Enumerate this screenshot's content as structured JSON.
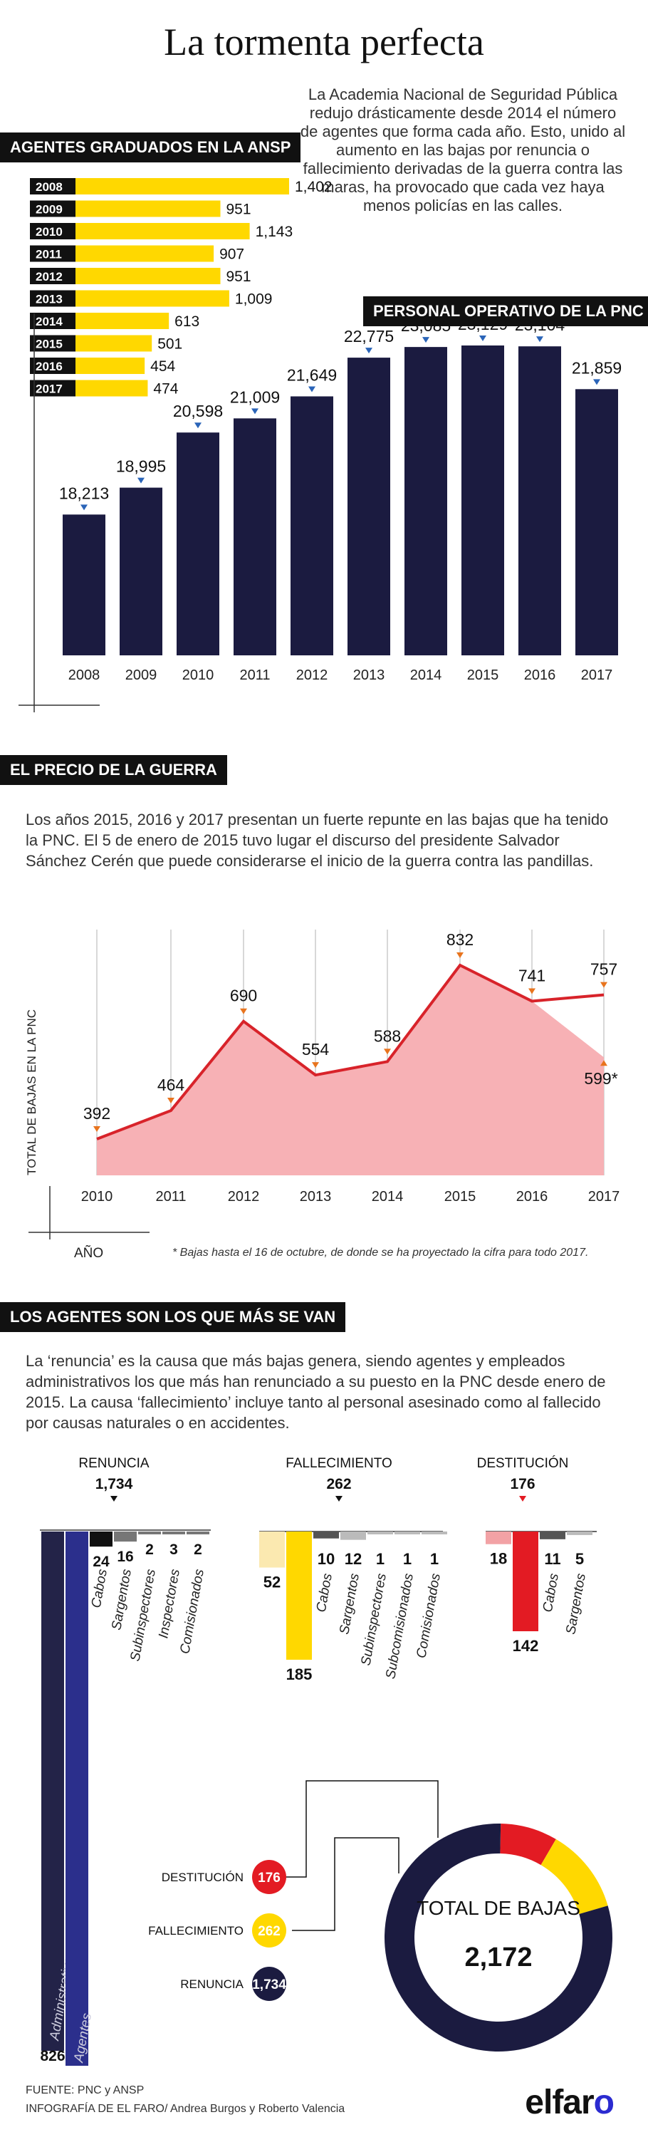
{
  "header": {
    "title": "La tormenta perfecta",
    "intro": "La Academia Nacional de Seguridad Pública redujo drásticamente desde 2014 el número de agentes que forma cada año. Esto, unido al aumento en las bajas por renuncia o fallecimiento derivadas de la guerra contra las maras, ha provocado que cada vez haya menos policías en las calles."
  },
  "section1": {
    "badge": "AGENTES GRADUADOS EN LA ANSP"
  },
  "section2": {
    "badge": "PERSONAL OPERATIVO DE LA PNC"
  },
  "section3": {
    "badge": "EL PRECIO DE LA GUERRA",
    "text": "Los años 2015, 2016 y 2017 presentan un fuerte repunte en las bajas que ha tenido la PNC. El 5 de enero de 2015 tuvo lugar el discurso del presidente Salvador Sánchez Cerén que puede considerarse el inicio de la guerra contra las pandillas."
  },
  "section4": {
    "badge": "LOS AGENTES SON LOS QUE MÁS SE VAN",
    "text": "La ‘renuncia’ es la causa que más bajas genera, siendo agentes y empleados administrativos los que más han renunciado a su puesto en la PNC desde enero de 2015. La causa ‘fallecimiento’ incluye tanto al personal asesinado como al fallecido por causas naturales o en accidentes."
  },
  "footer": {
    "source": "FUENTE: PNC y ANSP",
    "credit": "INFOGRAFÍA DE EL FARO/ Andrea Burgos y Roberto Valencia",
    "logo_a": "elfar",
    "logo_b": "o"
  },
  "colors": {
    "navy": "#1b1b40",
    "yellow": "#ffd800",
    "red": "#e31b23",
    "pink": "#f7b1b5",
    "line": "#d8232a"
  },
  "chart_data": [
    {
      "type": "bar",
      "orientation": "horizontal",
      "title": "AGENTES GRADUADOS EN LA ANSP",
      "categories": [
        "2008",
        "2009",
        "2010",
        "2011",
        "2012",
        "2013",
        "2014",
        "2015",
        "2016",
        "2017"
      ],
      "values": [
        1402,
        951,
        1143,
        907,
        951,
        1009,
        613,
        501,
        454,
        474
      ],
      "labels": [
        "1,402",
        "951",
        "1,143",
        "907",
        "951",
        "1,009",
        "613",
        "501",
        "454",
        "474"
      ]
    },
    {
      "type": "bar",
      "title": "PERSONAL OPERATIVO DE LA PNC",
      "categories": [
        "2008",
        "2009",
        "2010",
        "2011",
        "2012",
        "2013",
        "2014",
        "2015",
        "2016",
        "2017"
      ],
      "values": [
        18213,
        18995,
        20598,
        21009,
        21649,
        22775,
        23085,
        23129,
        23104,
        21859
      ],
      "labels": [
        "18,213",
        "18,995",
        "20,598",
        "21,009",
        "21,649",
        "22,775",
        "23,085",
        "23,129",
        "23,104",
        "21,859"
      ]
    },
    {
      "type": "area",
      "title": "EL PRECIO DE LA GUERRA",
      "x": [
        "2010",
        "2011",
        "2012",
        "2013",
        "2014",
        "2015",
        "2016",
        "2017"
      ],
      "series": [
        {
          "values": [
            392,
            464,
            690,
            554,
            588,
            832,
            741,
            757
          ]
        }
      ],
      "labels": [
        "392",
        "464",
        "690",
        "554",
        "588",
        "832",
        "741",
        "757"
      ],
      "area_2017": 599,
      "area_2017_label": "599*",
      "ylabel": "TOTAL DE BAJAS EN LA PNC",
      "xlabel": "AÑO",
      "note": "* Bajas hasta el 16 de octubre, de donde se ha proyectado la cifra para todo 2017.",
      "grid": true
    },
    {
      "type": "bar",
      "title": "RENUNCIA",
      "total": 1734,
      "total_label": "1,734",
      "categories": [
        "Administrativos",
        "Agentes",
        "Cabos",
        "Sargentos",
        "Subinspectores",
        "Inspectores",
        "Comisionados"
      ],
      "values": [
        826,
        861,
        24,
        16,
        2,
        3,
        2
      ],
      "labels": [
        "826",
        "861",
        "24",
        "16",
        "2",
        "3",
        "2"
      ]
    },
    {
      "type": "bar",
      "title": "FALLECIMIENTO",
      "total": 262,
      "total_label": "262",
      "categories": [
        "Administrativos",
        "Agentes",
        "Cabos",
        "Sargentos",
        "Subinspectores",
        "Subcomisionados",
        "Comisionados"
      ],
      "values": [
        52,
        185,
        10,
        12,
        1,
        1,
        1
      ],
      "labels": [
        "52",
        "185",
        "10",
        "12",
        "1",
        "1",
        "1"
      ]
    },
    {
      "type": "bar",
      "title": "DESTITUCIÓN",
      "total": 176,
      "total_label": "176",
      "categories": [
        "Administrativos",
        "Agentes",
        "Cabos",
        "Sargentos"
      ],
      "values": [
        18,
        142,
        11,
        5
      ],
      "labels": [
        "18",
        "142",
        "11",
        "5"
      ]
    },
    {
      "type": "pie",
      "title": "TOTAL DE BAJAS",
      "total": "2,172",
      "categories": [
        "DESTITUCIÓN",
        "FALLECIMIENTO",
        "RENUNCIA"
      ],
      "values": [
        176,
        262,
        1734
      ],
      "labels": [
        "176",
        "262",
        "1,734"
      ]
    }
  ]
}
